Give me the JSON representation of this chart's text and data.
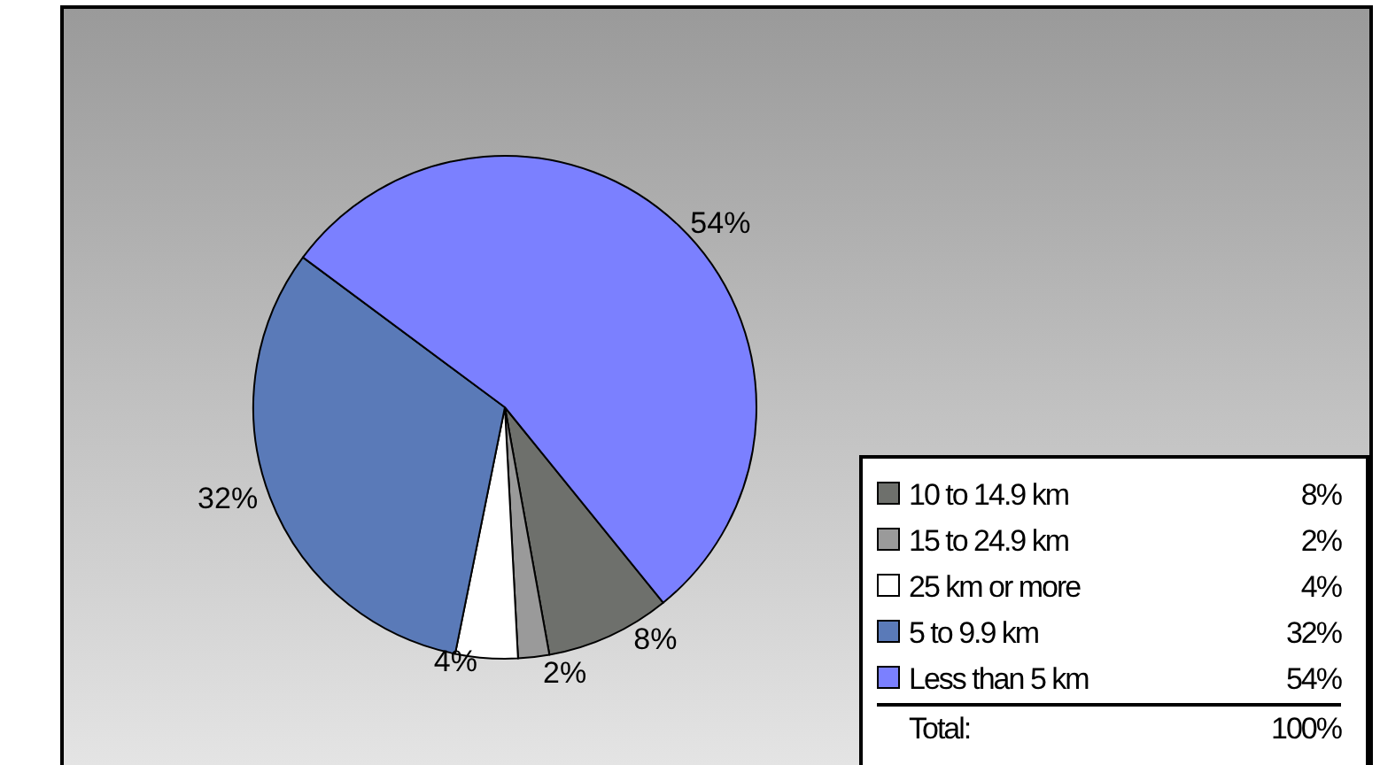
{
  "chart_data": {
    "type": "pie",
    "categories": [
      "10 to 14.9 km",
      "15 to 24.9 km",
      "25 km or more",
      "5 to 9.9 km",
      "Less than 5 km"
    ],
    "values": [
      8,
      2,
      4,
      32,
      54
    ],
    "colors": [
      "#6e706c",
      "#9a9a9a",
      "#ffffff",
      "#5a7ab8",
      "#7b80ff"
    ],
    "value_labels": [
      "8%",
      "2%",
      "4%",
      "32%",
      "54%"
    ],
    "legend": "bottom right",
    "annotations": [
      "Total:",
      "100%"
    ]
  }
}
